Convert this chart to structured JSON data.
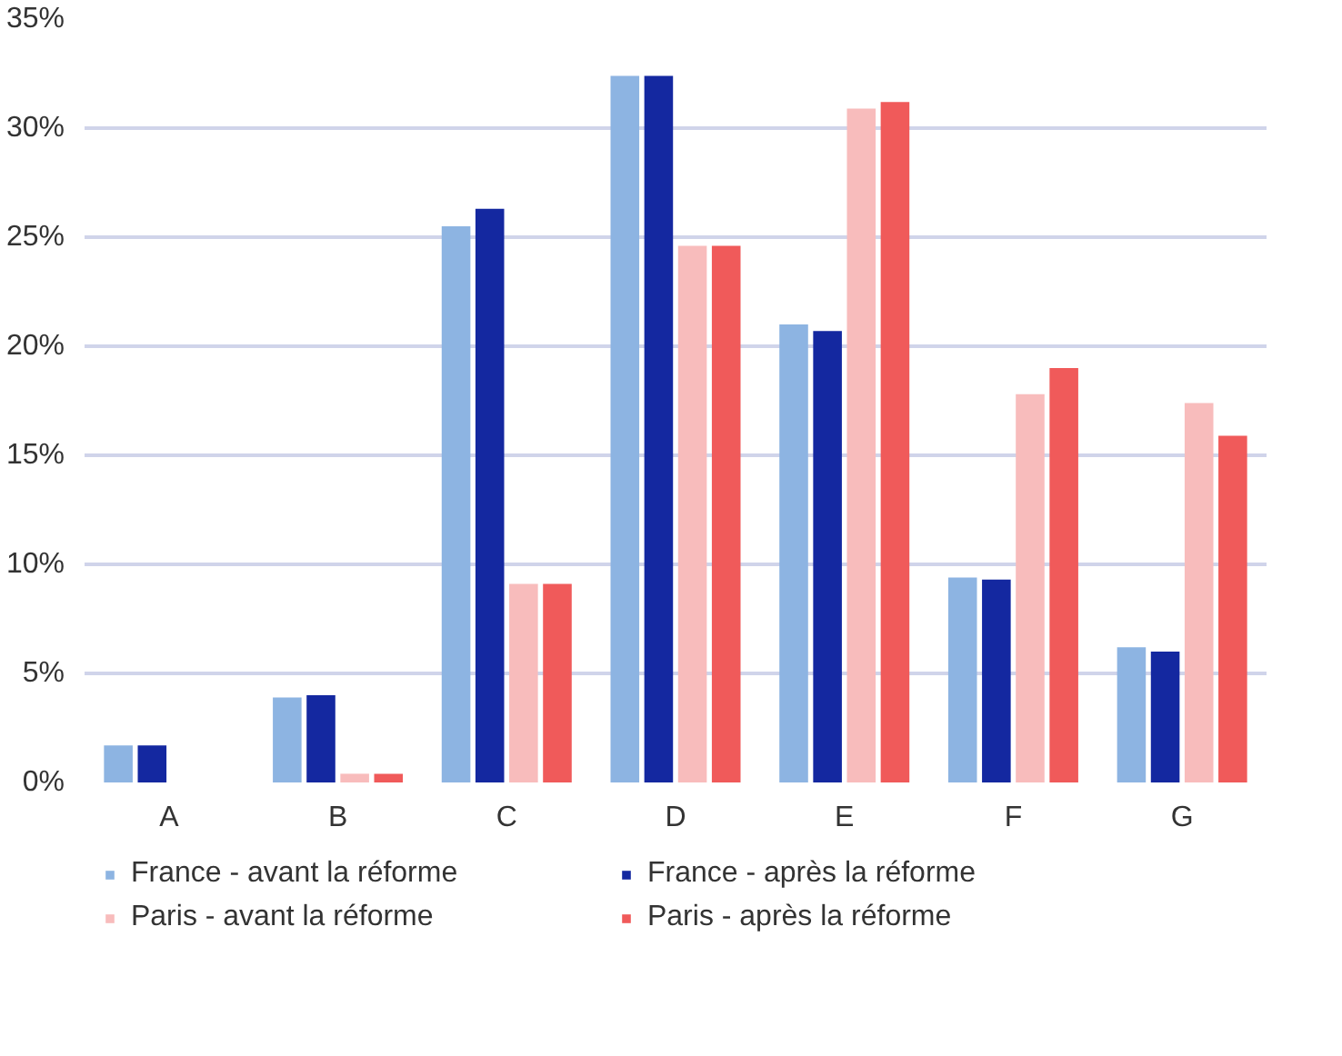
{
  "chart_data": {
    "type": "bar",
    "categories": [
      "A",
      "B",
      "C",
      "D",
      "E",
      "F",
      "G"
    ],
    "series": [
      {
        "name": "France - avant la réforme",
        "color": "#8db4e2",
        "values": [
          1.7,
          3.9,
          25.5,
          32.4,
          21.0,
          9.4,
          6.2
        ]
      },
      {
        "name": "France - après la réforme",
        "color": "#1428a0",
        "values": [
          1.7,
          4.0,
          26.3,
          32.4,
          20.7,
          9.3,
          6.0
        ]
      },
      {
        "name": "Paris - avant la réforme",
        "color": "#f8bcbc",
        "values": [
          0,
          0.4,
          9.1,
          24.6,
          30.9,
          17.8,
          17.4
        ]
      },
      {
        "name": "Paris - après la réforme",
        "color": "#f05a5a",
        "values": [
          0,
          0.4,
          9.1,
          24.6,
          31.2,
          19.0,
          15.9
        ]
      }
    ],
    "ylim": [
      0,
      35
    ],
    "yticks": [
      {
        "value": 0,
        "label": "0%"
      },
      {
        "value": 5,
        "label": "5%"
      },
      {
        "value": 10,
        "label": "10%"
      },
      {
        "value": 15,
        "label": "15%"
      },
      {
        "value": 20,
        "label": "20%"
      },
      {
        "value": 25,
        "label": "25%"
      },
      {
        "value": 30,
        "label": "30%"
      },
      {
        "value": 35,
        "label": "35%"
      }
    ],
    "grid": "y",
    "legend": "bottom"
  }
}
